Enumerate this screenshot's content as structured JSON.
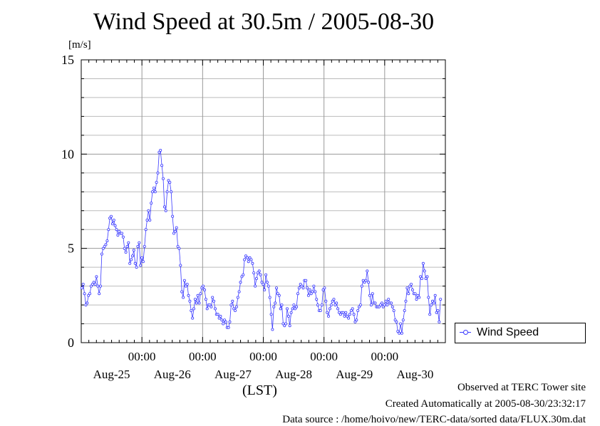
{
  "chart_data": {
    "type": "line",
    "title": "Wind Speed at 30.5m / 2005-08-30",
    "ylabel": "[m/s]",
    "xlabel": "(LST)",
    "ylim": [
      0,
      15
    ],
    "yticks": [
      "0",
      "5",
      "10",
      "15"
    ],
    "xticks": [
      {
        "time": "00:00",
        "date": "Aug-25"
      },
      {
        "time": "00:00",
        "date": "Aug-26"
      },
      {
        "time": "00:00",
        "date": "Aug-27"
      },
      {
        "time": "00:00",
        "date": "Aug-28"
      },
      {
        "time": "00:00",
        "date": "Aug-29"
      },
      {
        "time": "00:00",
        "date": "Aug-30"
      }
    ],
    "grid": true,
    "legend_position": "bottom-right",
    "series_color": "#3a3aff",
    "series": [
      {
        "name": "Wind Speed",
        "y_days": 6,
        "values": [
          2.9,
          3.1,
          2.6,
          2.0,
          2.1,
          2.5,
          2.6,
          3.0,
          3.1,
          3.2,
          3.1,
          3.5,
          3.0,
          2.6,
          3.0,
          4.7,
          5.0,
          5.1,
          5.2,
          5.4,
          6.0,
          6.6,
          6.7,
          6.3,
          6.5,
          6.2,
          6.0,
          5.7,
          5.9,
          5.8,
          5.8,
          5.6,
          5.0,
          4.8,
          5.1,
          5.3,
          4.2,
          4.4,
          4.6,
          4.9,
          4.2,
          4.0,
          5.1,
          5.3,
          4.1,
          4.5,
          4.3,
          5.1,
          6.0,
          6.5,
          7.0,
          6.5,
          7.4,
          8.0,
          8.2,
          8.0,
          8.5,
          9.0,
          10.1,
          10.2,
          9.4,
          8.7,
          7.2,
          7.0,
          8.0,
          8.6,
          8.5,
          8.0,
          6.7,
          5.8,
          5.9,
          6.1,
          5.1,
          5.0,
          4.1,
          2.7,
          2.4,
          3.3,
          3.0,
          3.1,
          2.5,
          2.2,
          1.7,
          1.3,
          1.8,
          2.3,
          2.1,
          2.5,
          2.1,
          2.6,
          2.9,
          3.0,
          2.8,
          2.3,
          1.8,
          2.0,
          2.0,
          1.9,
          2.4,
          2.2,
          1.8,
          1.5,
          1.5,
          1.3,
          1.4,
          1.2,
          1.0,
          1.2,
          1.1,
          0.8,
          0.8,
          1.1,
          2.0,
          2.2,
          1.8,
          1.7,
          1.9,
          2.4,
          2.7,
          3.2,
          3.5,
          3.6,
          4.4,
          4.6,
          4.5,
          4.3,
          4.5,
          4.4,
          4.2,
          3.7,
          3.0,
          3.4,
          3.7,
          3.8,
          3.6,
          3.2,
          3.1,
          2.8,
          3.6,
          3.2,
          3.0,
          2.4,
          1.5,
          0.7,
          1.9,
          2.1,
          2.9,
          2.6,
          2.5,
          1.8,
          2.0,
          1.0,
          0.9,
          1.0,
          1.8,
          1.4,
          0.9,
          1.6,
          1.8,
          2.0,
          1.8,
          1.9,
          2.6,
          2.9,
          3.1,
          3.0,
          2.9,
          3.3,
          3.3,
          2.9,
          2.5,
          2.8,
          2.6,
          2.7,
          3.0,
          2.7,
          2.3,
          2.0,
          1.7,
          1.7,
          2.0,
          2.8,
          2.9,
          2.2,
          1.6,
          1.4,
          1.8,
          2.0,
          2.2,
          2.3,
          2.0,
          2.1,
          1.8,
          1.6,
          1.5,
          1.6,
          1.6,
          1.4,
          1.6,
          1.4,
          1.3,
          1.5,
          1.7,
          1.8,
          1.5,
          1.1,
          1.2,
          1.7,
          1.9,
          2.0,
          3.0,
          3.3,
          3.2,
          3.3,
          3.8,
          3.2,
          2.5,
          2.0,
          2.6,
          2.1,
          2.1,
          1.9,
          1.9,
          1.9,
          2.0,
          2.1,
          1.9,
          2.0,
          2.2,
          2.0,
          2.3,
          2.1,
          2.1,
          1.9,
          1.7,
          1.2,
          1.1,
          0.6,
          0.5,
          1.0,
          0.5,
          1.2,
          1.7,
          2.2,
          2.9,
          2.6,
          3.0,
          3.1,
          2.8,
          2.6,
          2.6,
          2.3,
          2.5,
          2.4,
          3.5,
          3.4,
          4.2,
          3.8,
          3.4,
          3.5,
          2.4,
          1.5,
          2.0,
          2.2,
          2.1,
          2.5,
          1.6,
          1.7,
          1.1,
          2.3
        ]
      }
    ]
  },
  "footer": {
    "line1": "Observed at TERC Tower site",
    "line2": "Created Automatically at 2005-08-30/23:32:17",
    "line3": "Data source : /home/hoivo/new/TERC-data/sorted  data/FLUX.30m.dat"
  }
}
